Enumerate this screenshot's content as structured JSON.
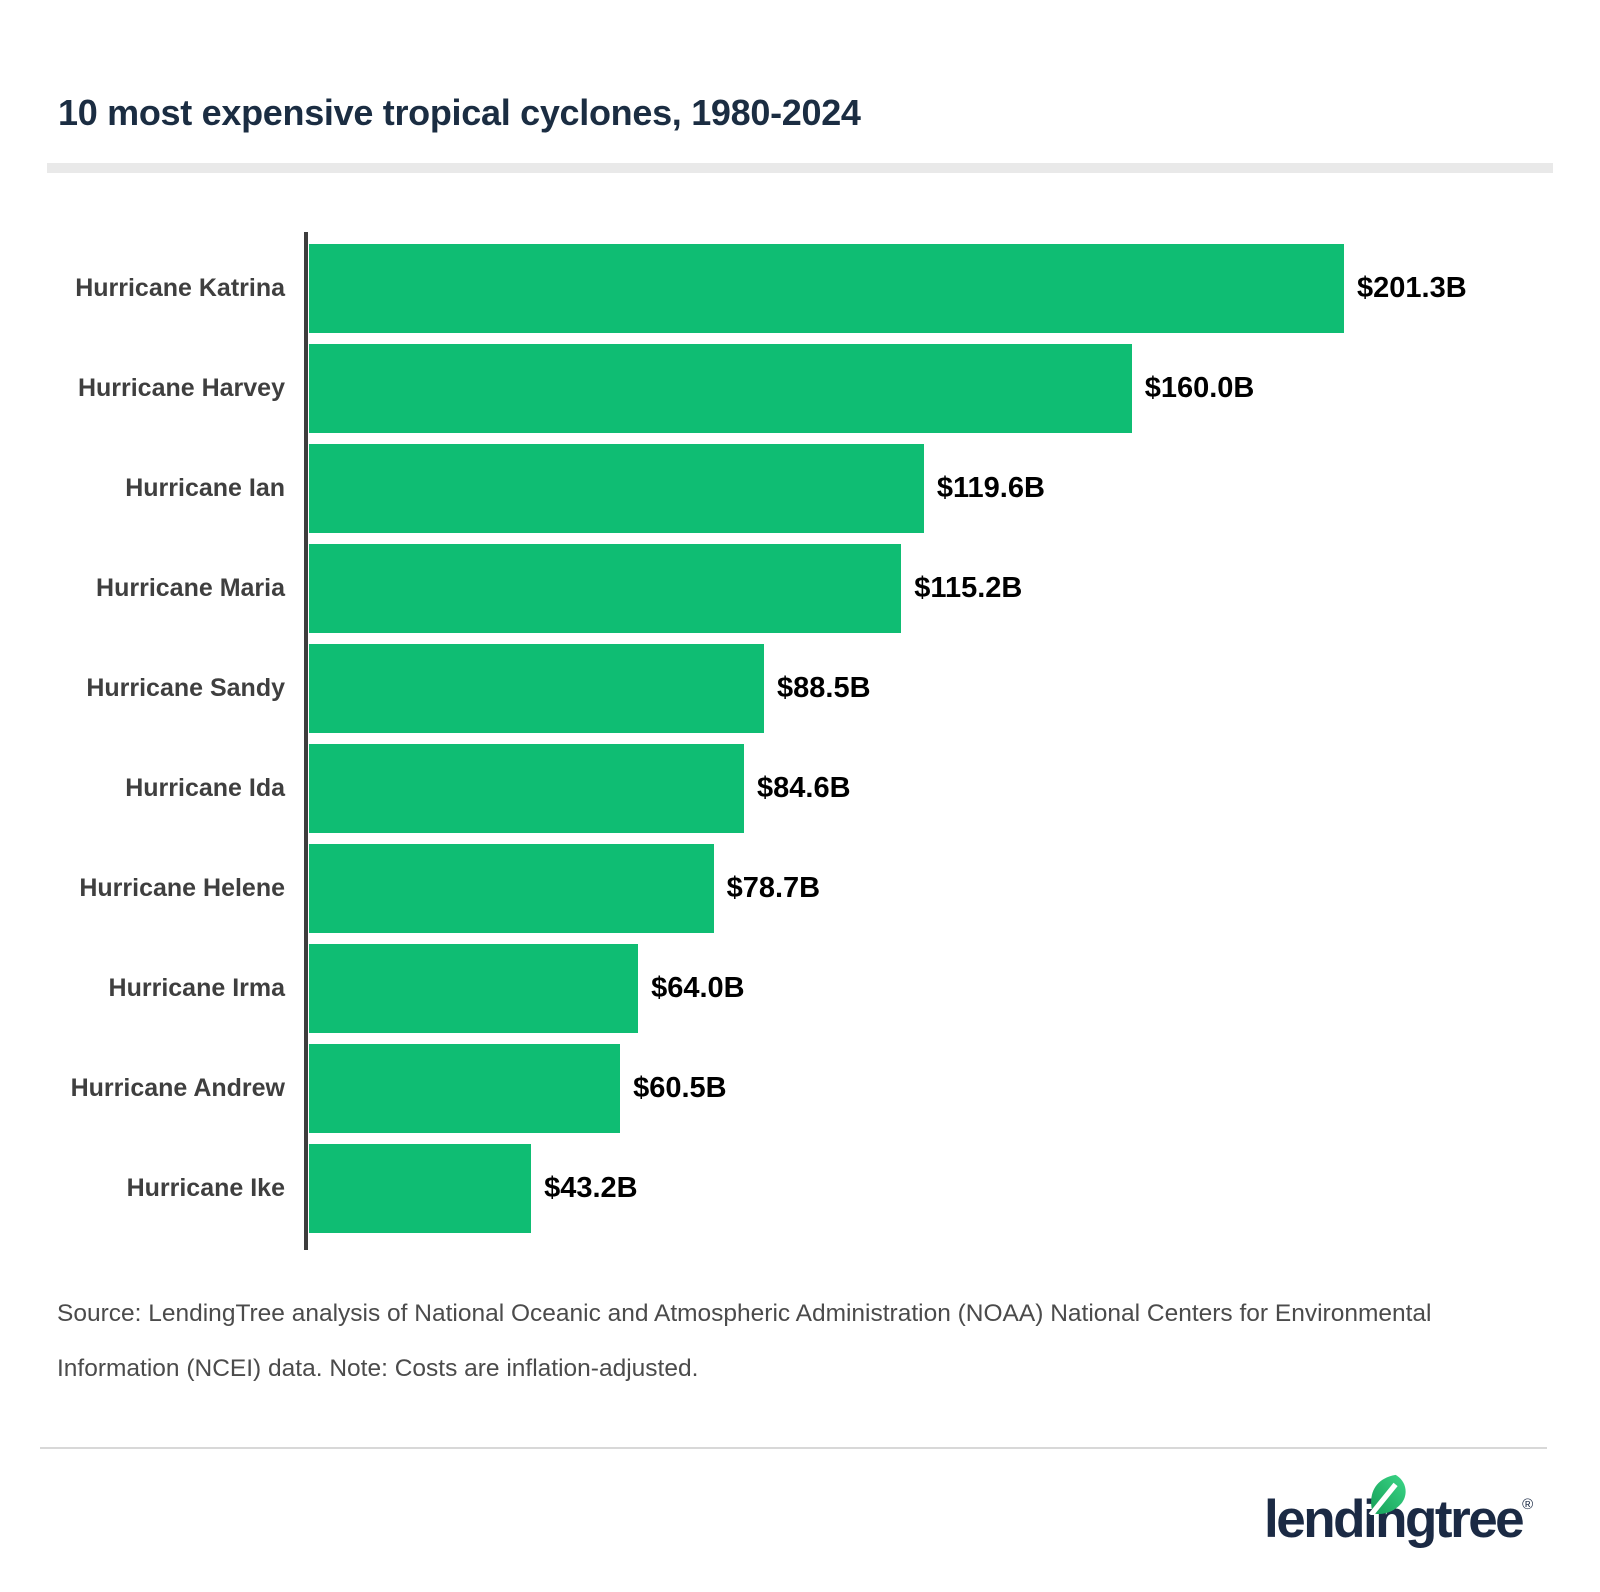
{
  "title": "10 most expensive tropical cyclones, 1980-2024",
  "chart_data": {
    "type": "bar",
    "orientation": "horizontal",
    "title": "10 most expensive tropical cyclones, 1980-2024",
    "categories": [
      "Hurricane Katrina",
      "Hurricane Harvey",
      "Hurricane Ian",
      "Hurricane Maria",
      "Hurricane Sandy",
      "Hurricane Ida",
      "Hurricane Helene",
      "Hurricane Irma",
      "Hurricane Andrew",
      "Hurricane Ike"
    ],
    "values": [
      201.3,
      160.0,
      119.6,
      115.2,
      88.5,
      84.6,
      78.7,
      64.0,
      60.5,
      43.2
    ],
    "value_labels": [
      "$201.3B",
      "$160.0B",
      "$119.6B",
      "$115.2B",
      "$88.5B",
      "$84.6B",
      "$78.7B",
      "$64.0B",
      "$60.5B",
      "$43.2B"
    ],
    "xlabel": "",
    "ylabel": "",
    "xlim": [
      0,
      201.3
    ],
    "grid": false,
    "legend": false,
    "bar_color": "#0fbd73",
    "axis_color": "#3d3d3d"
  },
  "source_note": "Source: LendingTree analysis of National Oceanic and Atmospheric Administration (NOAA) National Centers for Environmental Information (NCEI) data. Note: Costs are inflation-adjusted.",
  "footer": {
    "brand_wordmark": "lendingtree",
    "registered_mark": "®"
  },
  "colors": {
    "title_text": "#1b2d42",
    "label_text": "#3f3f3f",
    "value_text": "#000000",
    "source_text": "#4b4b4b",
    "title_divider": "#e9e9e9",
    "footer_divider": "#d8d8d8",
    "logo_navy": "#1b2a44",
    "leaf_green_dark": "#169f58",
    "leaf_green_light": "#3bd687",
    "background": "#ffffff"
  }
}
